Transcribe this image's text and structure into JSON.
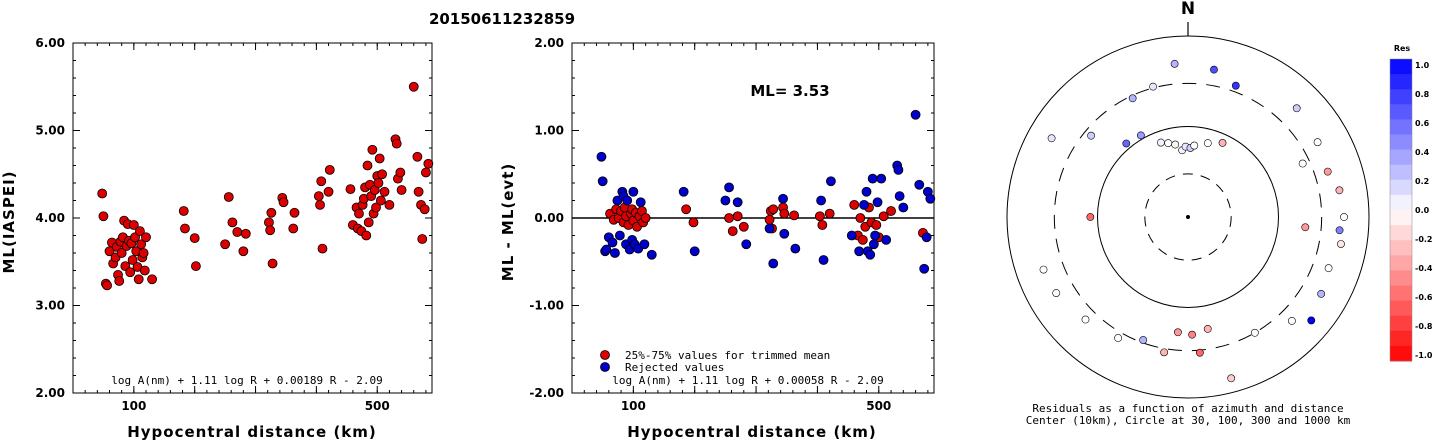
{
  "title": "20150611232859",
  "chart_data": [
    {
      "type": "scatter",
      "ylabel": "ML(IASPEI)",
      "xlabel": "Hypocentral distance (km)",
      "xlim": [
        0,
        590
      ],
      "ylim": [
        2.0,
        6.0
      ],
      "xticks": [
        100,
        200,
        300,
        400,
        500
      ],
      "yticks": [
        "2.00",
        "3.00",
        "4.00",
        "5.00",
        "6.00"
      ],
      "formula": "log A(nm) + 1.11 log R + 0.00189 R - 2.09",
      "series": [
        {
          "color": "#dd0000",
          "points": [
            [
              48,
              4.28
            ],
            [
              50,
              4.02
            ],
            [
              54,
              3.25
            ],
            [
              56,
              3.23
            ],
            [
              60,
              3.62
            ],
            [
              64,
              3.72
            ],
            [
              66,
              3.48
            ],
            [
              70,
              3.55
            ],
            [
              72,
              3.67
            ],
            [
              74,
              3.35
            ],
            [
              76,
              3.28
            ],
            [
              78,
              3.73
            ],
            [
              80,
              3.6
            ],
            [
              82,
              3.78
            ],
            [
              84,
              3.97
            ],
            [
              86,
              3.45
            ],
            [
              88,
              3.68
            ],
            [
              90,
              3.93
            ],
            [
              92,
              3.74
            ],
            [
              94,
              3.38
            ],
            [
              96,
              3.71
            ],
            [
              98,
              3.52
            ],
            [
              100,
              3.92
            ],
            [
              102,
              3.78
            ],
            [
              104,
              3.62
            ],
            [
              106,
              3.44
            ],
            [
              108,
              3.3
            ],
            [
              110,
              3.85
            ],
            [
              112,
              3.7
            ],
            [
              114,
              3.55
            ],
            [
              116,
              3.6
            ],
            [
              118,
              3.4
            ],
            [
              120,
              3.78
            ],
            [
              130,
              3.3
            ],
            [
              182,
              4.08
            ],
            [
              184,
              3.88
            ],
            [
              200,
              3.77
            ],
            [
              202,
              3.45
            ],
            [
              250,
              3.7
            ],
            [
              256,
              4.24
            ],
            [
              262,
              3.95
            ],
            [
              270,
              3.84
            ],
            [
              280,
              3.62
            ],
            [
              284,
              3.82
            ],
            [
              322,
              3.95
            ],
            [
              324,
              3.86
            ],
            [
              326,
              4.06
            ],
            [
              328,
              3.48
            ],
            [
              344,
              4.23
            ],
            [
              346,
              4.18
            ],
            [
              362,
              3.88
            ],
            [
              364,
              4.06
            ],
            [
              404,
              4.25
            ],
            [
              406,
              4.15
            ],
            [
              408,
              4.42
            ],
            [
              410,
              3.65
            ],
            [
              420,
              4.3
            ],
            [
              422,
              4.55
            ],
            [
              456,
              4.33
            ],
            [
              460,
              3.92
            ],
            [
              466,
              4.12
            ],
            [
              468,
              3.88
            ],
            [
              470,
              4.05
            ],
            [
              474,
              3.85
            ],
            [
              476,
              4.15
            ],
            [
              478,
              4.22
            ],
            [
              480,
              4.35
            ],
            [
              482,
              3.8
            ],
            [
              484,
              4.6
            ],
            [
              486,
              3.95
            ],
            [
              488,
              4.38
            ],
            [
              490,
              4.25
            ],
            [
              492,
              4.78
            ],
            [
              494,
              4.05
            ],
            [
              496,
              4.32
            ],
            [
              498,
              4.12
            ],
            [
              500,
              4.48
            ],
            [
              502,
              4.4
            ],
            [
              504,
              4.68
            ],
            [
              506,
              4.2
            ],
            [
              508,
              4.5
            ],
            [
              512,
              4.3
            ],
            [
              520,
              4.15
            ],
            [
              530,
              4.9
            ],
            [
              532,
              4.85
            ],
            [
              534,
              4.45
            ],
            [
              538,
              4.52
            ],
            [
              540,
              4.32
            ],
            [
              560,
              5.5
            ],
            [
              566,
              4.7
            ],
            [
              568,
              4.3
            ],
            [
              572,
              4.15
            ],
            [
              574,
              3.76
            ],
            [
              578,
              4.1
            ],
            [
              580,
              4.52
            ],
            [
              584,
              4.62
            ]
          ]
        }
      ]
    },
    {
      "type": "scatter",
      "ylabel": "ML - ML(evt)",
      "xlabel": "Hypocentral distance (km)",
      "xlim": [
        0,
        590
      ],
      "ylim": [
        -2.0,
        2.0
      ],
      "xticks": [
        100,
        200,
        300,
        400,
        500
      ],
      "yticks": [
        "-2.00",
        "-1.00",
        "0.00",
        "1.00",
        "2.00"
      ],
      "annotation": "ML= 3.53",
      "formula": "log A(nm) + 1.11 log R + 0.00058 R - 2.09",
      "legend": [
        "25%-75% values for trimmed mean",
        "Rejected values"
      ],
      "series": [
        {
          "color": "#dd0000",
          "points": [
            [
              62,
              0.05
            ],
            [
              68,
              -0.02
            ],
            [
              72,
              0.1
            ],
            [
              76,
              0.0
            ],
            [
              80,
              0.08
            ],
            [
              84,
              -0.05
            ],
            [
              86,
              0.12
            ],
            [
              88,
              0.02
            ],
            [
              92,
              -0.08
            ],
            [
              96,
              0.05
            ],
            [
              98,
              0.1
            ],
            [
              100,
              -0.03
            ],
            [
              104,
              0.06
            ],
            [
              106,
              -0.1
            ],
            [
              110,
              0.02
            ],
            [
              114,
              0.08
            ],
            [
              116,
              -0.05
            ],
            [
              120,
              0.0
            ],
            [
              186,
              0.1
            ],
            [
              198,
              -0.05
            ],
            [
              256,
              0.0
            ],
            [
              262,
              -0.15
            ],
            [
              270,
              0.02
            ],
            [
              280,
              -0.1
            ],
            [
              322,
              -0.02
            ],
            [
              324,
              0.08
            ],
            [
              326,
              -0.12
            ],
            [
              328,
              0.1
            ],
            [
              344,
              0.12
            ],
            [
              346,
              0.05
            ],
            [
              362,
              0.03
            ],
            [
              404,
              0.02
            ],
            [
              408,
              -0.08
            ],
            [
              420,
              0.05
            ],
            [
              460,
              0.15
            ],
            [
              466,
              -0.2
            ],
            [
              470,
              0.0
            ],
            [
              474,
              -0.25
            ],
            [
              478,
              -0.1
            ],
            [
              484,
              0.12
            ],
            [
              488,
              -0.05
            ],
            [
              496,
              -0.08
            ],
            [
              500,
              -0.22
            ],
            [
              508,
              0.02
            ],
            [
              520,
              0.08
            ],
            [
              572,
              -0.17
            ]
          ]
        },
        {
          "color": "#0000cc",
          "points": [
            [
              48,
              0.7
            ],
            [
              50,
              0.42
            ],
            [
              54,
              -0.38
            ],
            [
              56,
              -0.36
            ],
            [
              60,
              -0.22
            ],
            [
              66,
              -0.28
            ],
            [
              70,
              -0.4
            ],
            [
              74,
              0.2
            ],
            [
              78,
              -0.2
            ],
            [
              82,
              0.3
            ],
            [
              84,
              0.25
            ],
            [
              88,
              -0.3
            ],
            [
              90,
              0.2
            ],
            [
              94,
              -0.36
            ],
            [
              98,
              -0.25
            ],
            [
              100,
              0.3
            ],
            [
              102,
              -0.3
            ],
            [
              108,
              -0.35
            ],
            [
              112,
              0.18
            ],
            [
              118,
              -0.3
            ],
            [
              130,
              -0.42
            ],
            [
              182,
              0.3
            ],
            [
              200,
              -0.38
            ],
            [
              250,
              0.2
            ],
            [
              256,
              0.35
            ],
            [
              270,
              0.18
            ],
            [
              284,
              -0.3
            ],
            [
              322,
              -0.12
            ],
            [
              328,
              -0.52
            ],
            [
              344,
              0.22
            ],
            [
              346,
              -0.18
            ],
            [
              364,
              -0.35
            ],
            [
              406,
              0.2
            ],
            [
              410,
              -0.48
            ],
            [
              422,
              0.42
            ],
            [
              456,
              -0.2
            ],
            [
              468,
              -0.38
            ],
            [
              476,
              0.15
            ],
            [
              480,
              0.3
            ],
            [
              482,
              -0.38
            ],
            [
              486,
              -0.42
            ],
            [
              490,
              0.45
            ],
            [
              492,
              -0.3
            ],
            [
              494,
              -0.2
            ],
            [
              498,
              0.18
            ],
            [
              504,
              0.45
            ],
            [
              512,
              -0.25
            ],
            [
              530,
              0.6
            ],
            [
              532,
              0.55
            ],
            [
              534,
              0.25
            ],
            [
              540,
              0.12
            ],
            [
              560,
              1.18
            ],
            [
              566,
              0.38
            ],
            [
              574,
              -0.58
            ],
            [
              578,
              -0.22
            ],
            [
              580,
              0.3
            ],
            [
              584,
              0.22
            ]
          ]
        }
      ]
    },
    {
      "type": "polar-scatter",
      "north_label": "N",
      "caption": [
        "Residuals as a function of azimuth and distance",
        "Center (10km), Circle at 30, 100, 300 and 1000 km"
      ],
      "colorbar": {
        "title": "Res",
        "ticks": [
          "1.0",
          "0.8",
          "0.6",
          "0.4",
          "0.2",
          "0.0",
          "-0.2",
          "-0.4",
          "-0.6",
          "-0.8",
          "-1.0"
        ],
        "max_color": "#0000ff",
        "zero_color": "#ffffff",
        "min_color": "#ff0000"
      },
      "points": [
        {
          "az": 355,
          "dist": 55,
          "res": 0.05
        },
        {
          "az": 358,
          "dist": 60,
          "res": 0.1
        },
        {
          "az": 2,
          "dist": 58,
          "res": 0.2
        },
        {
          "az": 5,
          "dist": 62,
          "res": 0.0
        },
        {
          "az": 350,
          "dist": 65,
          "res": -0.05
        },
        {
          "az": 345,
          "dist": 70,
          "res": 0.0
        },
        {
          "az": 340,
          "dist": 75,
          "res": 0.05
        },
        {
          "az": 15,
          "dist": 70,
          "res": 0.0
        },
        {
          "az": 25,
          "dist": 80,
          "res": -0.3
        },
        {
          "az": 330,
          "dist": 110,
          "res": 0.4
        },
        {
          "az": 320,
          "dist": 115,
          "res": 0.6
        },
        {
          "az": 310,
          "dist": 250,
          "res": 0.2
        },
        {
          "az": 335,
          "dist": 280,
          "res": 0.3
        },
        {
          "az": 345,
          "dist": 310,
          "res": 0.1
        },
        {
          "az": 20,
          "dist": 350,
          "res": 0.8
        },
        {
          "az": 10,
          "dist": 450,
          "res": 0.7
        },
        {
          "az": 355,
          "dist": 500,
          "res": 0.3
        },
        {
          "az": 45,
          "dist": 500,
          "res": 0.2
        },
        {
          "az": 60,
          "dist": 450,
          "res": 0.0
        },
        {
          "az": 72,
          "dist": 420,
          "res": -0.4
        },
        {
          "az": 80,
          "dist": 500,
          "res": -0.3
        },
        {
          "az": 90,
          "dist": 530,
          "res": 0.0
        },
        {
          "az": 95,
          "dist": 480,
          "res": 0.5
        },
        {
          "az": 100,
          "dist": 520,
          "res": -0.1
        },
        {
          "az": 110,
          "dist": 450,
          "res": 0.0
        },
        {
          "az": 120,
          "dist": 500,
          "res": 0.3
        },
        {
          "az": 135,
          "dist": 420,
          "res": 0.0
        },
        {
          "az": 150,
          "dist": 300,
          "res": 0.0
        },
        {
          "az": 170,
          "dist": 180,
          "res": -0.3
        },
        {
          "az": 178,
          "dist": 200,
          "res": -0.5
        },
        {
          "az": 185,
          "dist": 190,
          "res": -0.4
        },
        {
          "az": 175,
          "dist": 320,
          "res": -0.6
        },
        {
          "az": 190,
          "dist": 330,
          "res": -0.3
        },
        {
          "az": 200,
          "dist": 280,
          "res": 0.3
        },
        {
          "az": 210,
          "dist": 350,
          "res": 0.0
        },
        {
          "az": 225,
          "dist": 400,
          "res": 0.0
        },
        {
          "az": 240,
          "dist": 480,
          "res": 0.0
        },
        {
          "az": 250,
          "dist": 500,
          "res": 0.0
        },
        {
          "az": 270,
          "dist": 120,
          "res": -0.6
        },
        {
          "az": 300,
          "dist": 550,
          "res": 0.1
        },
        {
          "az": 130,
          "dist": 600,
          "res": 1.0
        },
        {
          "az": 165,
          "dist": 700,
          "res": -0.2
        },
        {
          "az": 95,
          "dist": 200,
          "res": -0.4
        },
        {
          "az": 65,
          "dist": 250,
          "res": 0.0
        }
      ]
    }
  ]
}
